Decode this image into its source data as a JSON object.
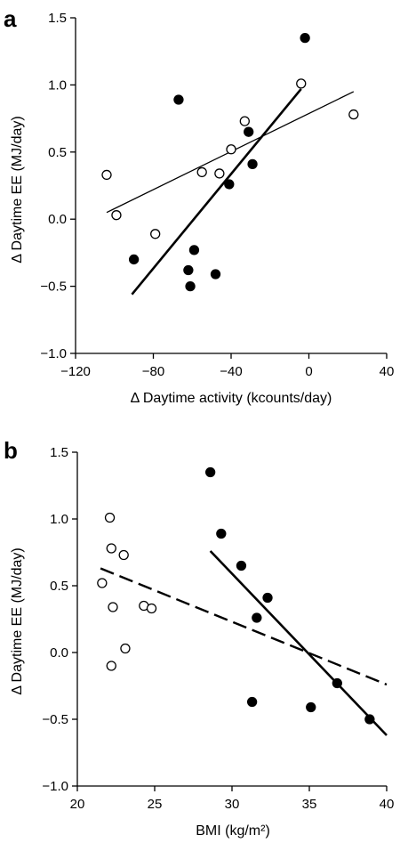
{
  "chart_data": [
    {
      "panel_label": "a",
      "type": "scatter",
      "xlabel": "Δ Daytime activity (kcounts/day)",
      "ylabel": "Δ Daytime EE  (MJ/day)",
      "xlim": [
        -120,
        40
      ],
      "ylim": [
        -1.0,
        1.5
      ],
      "x_ticks": [
        -120,
        -80,
        -40,
        0,
        40
      ],
      "x_tick_labels": [
        "−120",
        "−80",
        "−40",
        "0",
        "40"
      ],
      "y_ticks": [
        -1.0,
        -0.5,
        0.0,
        0.5,
        1.0,
        1.5
      ],
      "y_tick_labels": [
        "−1.0",
        "−0.5",
        "0.0",
        "0.5",
        "1.0",
        "1.5"
      ],
      "grid": false,
      "legend": false,
      "series": [
        {
          "marker": "open-circle",
          "x": [
            -104,
            -99,
            -79,
            -55,
            -46,
            -40,
            -33,
            -4,
            23
          ],
          "y": [
            0.33,
            0.03,
            -0.11,
            0.35,
            0.34,
            0.52,
            0.73,
            1.01,
            0.78
          ]
        },
        {
          "marker": "filled-circle",
          "x": [
            -90,
            -67,
            -59,
            -62,
            -61,
            -48,
            -41,
            -31,
            -29,
            -2
          ],
          "y": [
            -0.3,
            0.89,
            -0.23,
            -0.38,
            -0.5,
            -0.41,
            0.26,
            0.65,
            0.41,
            1.35
          ]
        }
      ],
      "fit_lines": [
        {
          "style": "thin-solid",
          "x": [
            -104,
            23
          ],
          "y": [
            0.05,
            0.95
          ]
        },
        {
          "style": "thick-solid",
          "x": [
            -91,
            -4
          ],
          "y": [
            -0.56,
            0.97
          ]
        }
      ]
    },
    {
      "panel_label": "b",
      "type": "scatter",
      "xlabel": "BMI (kg/m²)",
      "ylabel": "Δ Daytime EE  (MJ/day)",
      "xlim": [
        20,
        40
      ],
      "ylim": [
        -1.0,
        1.5
      ],
      "x_ticks": [
        20,
        25,
        30,
        35,
        40
      ],
      "x_tick_labels": [
        "20",
        "25",
        "30",
        "35",
        "40"
      ],
      "y_ticks": [
        -1.0,
        -0.5,
        0.0,
        0.5,
        1.0,
        1.5
      ],
      "y_tick_labels": [
        "−1.0",
        "−0.5",
        "0.0",
        "0.5",
        "1.0",
        "1.5"
      ],
      "grid": false,
      "legend": false,
      "series": [
        {
          "marker": "open-circle",
          "x": [
            21.6,
            22.1,
            22.2,
            22.3,
            22.2,
            23.0,
            23.1,
            24.3,
            24.8
          ],
          "y": [
            0.52,
            1.01,
            0.78,
            0.34,
            -0.1,
            0.73,
            0.03,
            0.35,
            0.33
          ]
        },
        {
          "marker": "filled-circle",
          "x": [
            28.6,
            29.3,
            30.6,
            31.3,
            31.6,
            32.3,
            35.1,
            36.8,
            38.9
          ],
          "y": [
            1.35,
            0.89,
            0.65,
            -0.37,
            0.26,
            0.41,
            -0.41,
            -0.23,
            -0.5
          ]
        }
      ],
      "fit_lines": [
        {
          "style": "dashed",
          "x": [
            21.5,
            40
          ],
          "y": [
            0.63,
            -0.24
          ]
        },
        {
          "style": "thick-solid",
          "x": [
            28.6,
            40
          ],
          "y": [
            0.76,
            -0.62
          ]
        }
      ]
    }
  ]
}
